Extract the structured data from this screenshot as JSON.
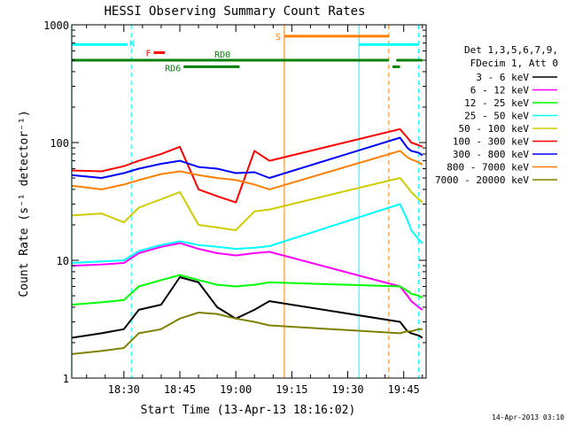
{
  "chart_data": {
    "type": "line",
    "title": "HESSI Observing Summary Count Rates",
    "xlabel": "Start Time (13-Apr-13 18:16:02)",
    "ylabel": "Count Rate (s⁻¹ detector⁻¹)",
    "yscale": "log",
    "ylim": [
      1,
      1000
    ],
    "xlim": [
      "18:16:02",
      "19:51:00"
    ],
    "x_ticks": [
      "18:30",
      "18:45",
      "19:00",
      "19:15",
      "19:30",
      "19:45"
    ],
    "y_ticks": [
      "1",
      "10",
      "100",
      "1000"
    ],
    "grid": false,
    "legend_placement": "right",
    "legend_title": [
      "Det 1,3,5,6,7,9,",
      "FDecim 1, Att 0"
    ],
    "timestamp": "14-Apr-2013 03:10",
    "series": [
      {
        "name": "3 - 6 keV",
        "color": "#000000",
        "x": [
          "18:16",
          "18:24",
          "18:30",
          "18:34",
          "18:40",
          "18:45",
          "18:50",
          "18:55",
          "19:00",
          "19:05",
          "19:09",
          "19:44",
          "19:46",
          "19:47",
          "19:49",
          "19:50"
        ],
        "y": [
          2.2,
          2.4,
          2.6,
          3.8,
          4.2,
          7.2,
          6.5,
          4.0,
          3.2,
          3.8,
          4.5,
          3.0,
          2.5,
          2.4,
          2.3,
          2.2
        ]
      },
      {
        "name": "6 - 12 keV",
        "color": "#ff00ff",
        "x": [
          "18:16",
          "18:24",
          "18:30",
          "18:34",
          "18:40",
          "18:45",
          "18:50",
          "18:55",
          "19:00",
          "19:05",
          "19:09",
          "19:44",
          "19:46",
          "19:47",
          "19:49",
          "19:50"
        ],
        "y": [
          9.0,
          9.2,
          9.5,
          11.5,
          13.0,
          14.0,
          12.5,
          11.5,
          11.0,
          11.5,
          11.8,
          6.0,
          5.0,
          4.5,
          4.0,
          3.8
        ]
      },
      {
        "name": "12 - 25 keV",
        "color": "#00ff00",
        "x": [
          "18:16",
          "18:24",
          "18:30",
          "18:34",
          "18:40",
          "18:45",
          "18:50",
          "18:55",
          "19:00",
          "19:05",
          "19:09",
          "19:44",
          "19:46",
          "19:47",
          "19:49",
          "19:50"
        ],
        "y": [
          4.2,
          4.4,
          4.6,
          6.0,
          6.8,
          7.5,
          6.8,
          6.2,
          6.0,
          6.2,
          6.5,
          6.0,
          5.5,
          5.2,
          5.0,
          4.8
        ]
      },
      {
        "name": "25 - 50 keV",
        "color": "#00ffff",
        "x": [
          "18:16",
          "18:24",
          "18:30",
          "18:34",
          "18:40",
          "18:45",
          "18:50",
          "18:55",
          "19:00",
          "19:05",
          "19:09",
          "19:44",
          "19:46",
          "19:47",
          "19:49",
          "19:50"
        ],
        "y": [
          9.5,
          9.8,
          10.0,
          12.0,
          13.5,
          14.5,
          13.5,
          13.0,
          12.5,
          12.8,
          13.2,
          30,
          22,
          18,
          15,
          14
        ]
      },
      {
        "name": "50 - 100 keV",
        "color": "#cccc00",
        "x": [
          "18:16",
          "18:24",
          "18:30",
          "18:34",
          "18:40",
          "18:45",
          "18:50",
          "18:55",
          "19:00",
          "19:05",
          "19:09",
          "19:44",
          "19:46",
          "19:47",
          "19:49",
          "19:50"
        ],
        "y": [
          24,
          25,
          21,
          28,
          33,
          38,
          20,
          19,
          18,
          26,
          27,
          50,
          42,
          38,
          33,
          31
        ]
      },
      {
        "name": "100 - 300 keV",
        "color": "#ff0000",
        "x": [
          "18:16",
          "18:24",
          "18:30",
          "18:34",
          "18:40",
          "18:45",
          "18:50",
          "18:55",
          "19:00",
          "19:05",
          "19:09",
          "19:44",
          "19:46",
          "19:47",
          "19:49",
          "19:50"
        ],
        "y": [
          58,
          57,
          63,
          70,
          80,
          92,
          40,
          35,
          31,
          85,
          70,
          130,
          110,
          100,
          95,
          92
        ]
      },
      {
        "name": "300 - 800 keV",
        "color": "#0000ff",
        "x": [
          "18:16",
          "18:24",
          "18:30",
          "18:34",
          "18:40",
          "18:45",
          "18:50",
          "18:55",
          "19:00",
          "19:05",
          "19:09",
          "19:44",
          "19:46",
          "19:47",
          "19:49",
          "19:50"
        ],
        "y": [
          53,
          50,
          55,
          60,
          66,
          70,
          62,
          60,
          55,
          56,
          50,
          110,
          90,
          85,
          82,
          78
        ]
      },
      {
        "name": "800 - 7000 keV",
        "color": "#ff8000",
        "x": [
          "18:16",
          "18:24",
          "18:30",
          "18:34",
          "18:40",
          "18:45",
          "18:50",
          "18:55",
          "19:00",
          "19:05",
          "19:09",
          "19:44",
          "19:46",
          "19:47",
          "19:49",
          "19:50"
        ],
        "y": [
          43,
          40,
          44,
          48,
          54,
          57,
          53,
          50,
          48,
          44,
          40,
          85,
          75,
          72,
          68,
          65
        ]
      },
      {
        "name": "7000 - 20000 keV",
        "color": "#808000",
        "x": [
          "18:16",
          "18:24",
          "18:30",
          "18:34",
          "18:40",
          "18:45",
          "18:50",
          "18:55",
          "19:00",
          "19:05",
          "19:09",
          "19:44",
          "19:46",
          "19:47",
          "19:49",
          "19:50"
        ],
        "y": [
          1.6,
          1.7,
          1.8,
          2.4,
          2.6,
          3.2,
          3.6,
          3.5,
          3.2,
          3.0,
          2.8,
          2.4,
          2.5,
          2.5,
          2.6,
          2.6
        ]
      }
    ],
    "flag_bars": [
      {
        "label": "N",
        "color": "#00ffff",
        "level": 680,
        "segments": [
          [
            "18:16",
            "18:31"
          ],
          [
            "19:33",
            "19:49"
          ]
        ]
      },
      {
        "label": "F",
        "color": "#ff0000",
        "level": 580,
        "segments": [
          [
            "18:38",
            "18:41"
          ]
        ]
      },
      {
        "label": "S",
        "color": "#ff8000",
        "level": 800,
        "segments": [
          [
            "19:13",
            "19:41"
          ]
        ]
      },
      {
        "label": "RD0",
        "color": "#008000",
        "level": 500,
        "segments": [
          [
            "18:16",
            "19:41"
          ],
          [
            "19:43",
            "19:50"
          ]
        ]
      },
      {
        "label": "RD6",
        "color": "#008000",
        "level": 440,
        "segments": [
          [
            "18:46",
            "19:01"
          ],
          [
            "19:42",
            "19:44"
          ]
        ]
      }
    ],
    "vertical_markers": [
      {
        "time": "18:16",
        "color": "#00ffff",
        "style": "solid"
      },
      {
        "time": "18:32",
        "color": "#00ffff",
        "style": "dashed"
      },
      {
        "time": "19:13",
        "color": "#ff8000",
        "style": "solid"
      },
      {
        "time": "19:33",
        "color": "#00ffff",
        "style": "solid"
      },
      {
        "time": "19:41",
        "color": "#ff8000",
        "style": "dashed"
      },
      {
        "time": "19:49",
        "color": "#00ffff",
        "style": "dashed"
      }
    ]
  }
}
